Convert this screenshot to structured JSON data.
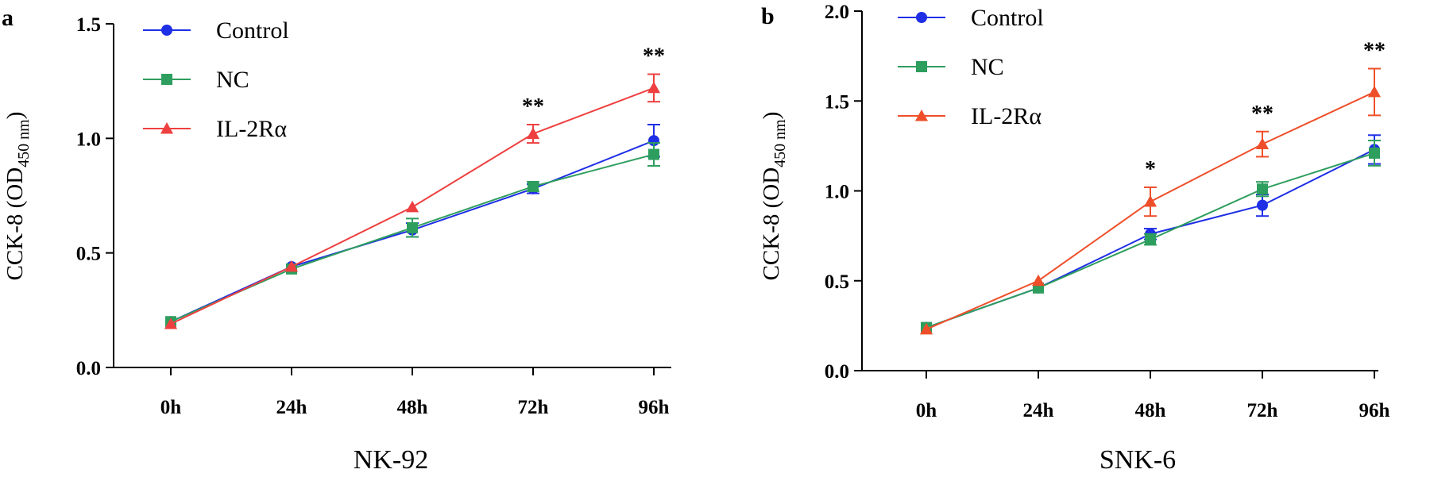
{
  "chart_data": [
    {
      "type": "line",
      "panel": "a",
      "title": "",
      "xlabel": "NK-92",
      "ylabel": {
        "main": "CCK-8 (OD",
        "sub": "450 nm",
        "close": ")"
      },
      "categories": [
        "0h",
        "24h",
        "48h",
        "72h",
        "96h"
      ],
      "ylim": [
        0,
        1.5
      ],
      "yticks": [
        "0.0",
        "0.5",
        "1.0",
        "1.5"
      ],
      "legend_position": "top-left",
      "grid": false,
      "series": [
        {
          "name": "Control",
          "color": "#1f2fe6",
          "marker": "circle",
          "values": [
            0.2,
            0.44,
            0.6,
            0.78,
            0.99
          ],
          "errors": [
            0.01,
            0.01,
            0.03,
            0.02,
            0.07
          ]
        },
        {
          "name": "NC",
          "color": "#2e9e5e",
          "marker": "square",
          "values": [
            0.2,
            0.43,
            0.61,
            0.79,
            0.93
          ],
          "errors": [
            0.01,
            0.01,
            0.04,
            0.02,
            0.05
          ]
        },
        {
          "name": "IL-2Rα",
          "color": "#ee4040",
          "marker": "triangle",
          "values": [
            0.19,
            0.44,
            0.7,
            1.02,
            1.22
          ],
          "errors": [
            0.01,
            0.01,
            0.01,
            0.04,
            0.06
          ]
        }
      ],
      "annotations": [
        {
          "category": "72h",
          "text": "**"
        },
        {
          "category": "96h",
          "text": "**"
        }
      ]
    },
    {
      "type": "line",
      "panel": "b",
      "title": "",
      "xlabel": "SNK-6",
      "ylabel": {
        "main": "CCK-8 (OD",
        "sub": "450 nm",
        "close": ")"
      },
      "categories": [
        "0h",
        "24h",
        "48h",
        "72h",
        "96h"
      ],
      "ylim": [
        0,
        2.0
      ],
      "yticks": [
        "0.0",
        "0.5",
        "1.0",
        "1.5",
        "2.0"
      ],
      "legend_position": "top-left",
      "grid": false,
      "series": [
        {
          "name": "Control",
          "color": "#1f2fe6",
          "marker": "circle",
          "values": [
            0.24,
            0.46,
            0.76,
            0.92,
            1.23
          ],
          "errors": [
            0.01,
            0.01,
            0.03,
            0.06,
            0.08
          ]
        },
        {
          "name": "NC",
          "color": "#2e9e5e",
          "marker": "square",
          "values": [
            0.24,
            0.46,
            0.73,
            1.01,
            1.21
          ],
          "errors": [
            0.01,
            0.01,
            0.03,
            0.04,
            0.07
          ]
        },
        {
          "name": "IL-2Rα",
          "color": "#ee4f2a",
          "marker": "triangle",
          "values": [
            0.23,
            0.5,
            0.94,
            1.26,
            1.55
          ],
          "errors": [
            0.01,
            0.01,
            0.08,
            0.07,
            0.13
          ]
        }
      ],
      "annotations": [
        {
          "category": "48h",
          "text": "*"
        },
        {
          "category": "72h",
          "text": "**"
        },
        {
          "category": "96h",
          "text": "**"
        }
      ]
    }
  ]
}
